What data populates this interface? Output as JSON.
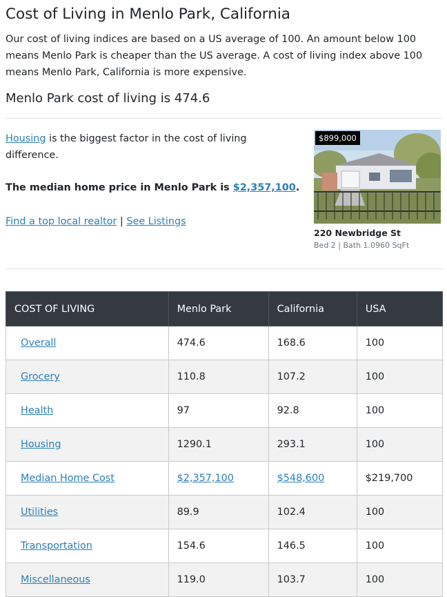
{
  "page": {
    "title": "Cost of Living in Menlo Park, California",
    "intro": "Our cost of living indices are based on a US average of 100. An amount below 100 means Menlo Park is cheaper than the US average. A cost of living index above 100 means Menlo Park, California is more expensive.",
    "headline": "Menlo Park cost of living is 474.6"
  },
  "factor": {
    "link": "Housing",
    "text": " is the biggest factor in the cost of living difference."
  },
  "median": {
    "prefix": "The median home price in Menlo Park is ",
    "value": "$2,357,100",
    "suffix": "."
  },
  "links": {
    "realtor": "Find a top local realtor",
    "separator": " | ",
    "listings": "See Listings"
  },
  "listing": {
    "price": "$899,000",
    "address": "220 Newbridge St",
    "details": "Bed 2 | Bath 1.0960 SqFt",
    "photo_icon": "house-photo"
  },
  "table": {
    "headers": [
      "COST OF LIVING",
      "Menlo Park",
      "California",
      "USA"
    ],
    "rows": [
      {
        "label": "Overall",
        "menlo": "474.6",
        "california": "168.6",
        "usa": "100"
      },
      {
        "label": "Grocery",
        "menlo": "110.8",
        "california": "107.2",
        "usa": "100"
      },
      {
        "label": "Health",
        "menlo": "97",
        "california": "92.8",
        "usa": "100"
      },
      {
        "label": "Housing",
        "menlo": "1290.1",
        "california": "293.1",
        "usa": "100"
      },
      {
        "label": "Median Home Cost",
        "menlo": "$2,357,100",
        "california": "$548,600",
        "usa": "$219,700"
      },
      {
        "label": "Utilities",
        "menlo": "89.9",
        "california": "102.4",
        "usa": "100"
      },
      {
        "label": "Transportation",
        "menlo": "154.6",
        "california": "146.5",
        "usa": "100"
      },
      {
        "label": "Miscellaneous",
        "menlo": "119.0",
        "california": "103.7",
        "usa": "100"
      }
    ]
  },
  "colors": {
    "link": "#2a7fb8",
    "table_header": "#343a40"
  }
}
